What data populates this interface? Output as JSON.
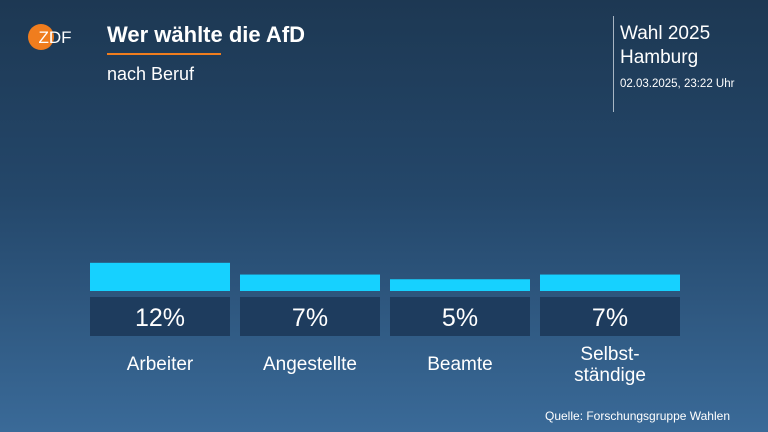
{
  "header": {
    "logo_text": "ZDF",
    "title": "Wer wählte die AfD",
    "subtitle": "nach Beruf",
    "election_line1": "Wahl 2025",
    "election_line2": "Hamburg",
    "timestamp": "02.03.2025, 23:22 Uhr"
  },
  "footer": {
    "source": "Quelle: Forschungsgruppe Wahlen"
  },
  "colors": {
    "bar": "#16d1ff",
    "value_box": "#1e3c5e",
    "accent": "#f07d1e",
    "logo": "#f07d1e"
  },
  "chart_data": {
    "type": "bar",
    "title": "Wer wählte die AfD",
    "subtitle": "nach Beruf",
    "categories": [
      [
        "Arbeiter"
      ],
      [
        "Angestellte"
      ],
      [
        "Beamte"
      ],
      [
        "Selbst-",
        "ständige"
      ]
    ],
    "values": [
      12,
      7,
      5,
      7
    ],
    "value_labels": [
      "12%",
      "7%",
      "5%",
      "7%"
    ],
    "unit": "%",
    "grid": false,
    "legend": "none"
  }
}
